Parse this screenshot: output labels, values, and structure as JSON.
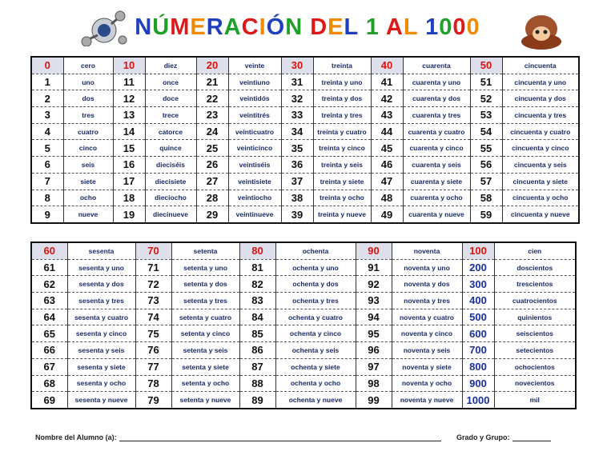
{
  "header": {
    "title": "NÚMERACIÓN DEL 1 AL 1000"
  },
  "tables": [
    {
      "rows": [
        [
          "0",
          "cero",
          "10",
          "diez",
          "20",
          "veinte",
          "30",
          "treinta",
          "40",
          "cuarenta",
          "50",
          "cincuenta"
        ],
        [
          "1",
          "uno",
          "11",
          "once",
          "21",
          "veintiuno",
          "31",
          "treinta y uno",
          "41",
          "cuarenta y uno",
          "51",
          "cincuenta y uno"
        ],
        [
          "2",
          "dos",
          "12",
          "doce",
          "22",
          "veintidós",
          "32",
          "treinta y dos",
          "42",
          "cuarenta y dos",
          "52",
          "cincuenta y dos"
        ],
        [
          "3",
          "tres",
          "13",
          "trece",
          "23",
          "veintitrés",
          "33",
          "treinta y tres",
          "43",
          "cuarenta y tres",
          "53",
          "cincuenta y tres"
        ],
        [
          "4",
          "cuatro",
          "14",
          "catorce",
          "24",
          "veinticuatro",
          "34",
          "treinta y cuatro",
          "44",
          "cuarenta y cuatro",
          "54",
          "cincuenta y cuatro"
        ],
        [
          "5",
          "cinco",
          "15",
          "quince",
          "25",
          "veinticinco",
          "35",
          "treinta y cinco",
          "45",
          "cuarenta y cinco",
          "55",
          "cincuenta y cinco"
        ],
        [
          "6",
          "seis",
          "16",
          "dieciséis",
          "26",
          "veintiséis",
          "36",
          "treinta y seis",
          "46",
          "cuarenta y seis",
          "56",
          "cincuenta y seis"
        ],
        [
          "7",
          "siete",
          "17",
          "diecisiete",
          "27",
          "veintisiete",
          "37",
          "treinta y siete",
          "47",
          "cuarenta y siete",
          "57",
          "cincuenta y siete"
        ],
        [
          "8",
          "ocho",
          "18",
          "dieciocho",
          "28",
          "veintiocho",
          "38",
          "treinta y ocho",
          "48",
          "cuarenta y ocho",
          "58",
          "cincuenta y ocho"
        ],
        [
          "9",
          "nueve",
          "19",
          "diecinueve",
          "29",
          "veintinueve",
          "39",
          "treinta y nueve",
          "49",
          "cuarenta y nueve",
          "59",
          "cincuenta y nueve"
        ]
      ]
    },
    {
      "rows": [
        [
          "60",
          "sesenta",
          "70",
          "setenta",
          "80",
          "ochenta",
          "90",
          "noventa",
          "100",
          "cien"
        ],
        [
          "61",
          "sesenta y uno",
          "71",
          "setenta y uno",
          "81",
          "ochenta y uno",
          "91",
          "noventa y uno",
          "200",
          "doscientos"
        ],
        [
          "62",
          "sesenta y dos",
          "72",
          "setenta y dos",
          "82",
          "ochenta y dos",
          "92",
          "noventa y dos",
          "300",
          "trescientos"
        ],
        [
          "63",
          "sesenta y tres",
          "73",
          "setenta y tres",
          "83",
          "ochenta y tres",
          "93",
          "noventa y tres",
          "400",
          "cuatrocientos"
        ],
        [
          "64",
          "sesenta y cuatro",
          "74",
          "setenta y cuatro",
          "84",
          "ochenta y cuatro",
          "94",
          "noventa y cuatro",
          "500",
          "quinientos"
        ],
        [
          "65",
          "sesenta y cinco",
          "75",
          "setenta y cinco",
          "85",
          "ochenta y cinco",
          "95",
          "noventa y cinco",
          "600",
          "seiscientos"
        ],
        [
          "66",
          "sesenta y seis",
          "76",
          "setenta y seis",
          "86",
          "ochenta y seis",
          "96",
          "noventa y seis",
          "700",
          "setecientos"
        ],
        [
          "67",
          "sesenta y siete",
          "77",
          "setenta y siete",
          "87",
          "ochenta y siete",
          "97",
          "noventa y siete",
          "800",
          "ochocientos"
        ],
        [
          "68",
          "sesenta y ocho",
          "78",
          "setenta y ocho",
          "88",
          "ochenta y ocho",
          "98",
          "noventa y ocho",
          "900",
          "novecientos"
        ],
        [
          "69",
          "sesenta y nueve",
          "79",
          "setenta y nueve",
          "89",
          "ochenta y nueve",
          "99",
          "noventa y nueve",
          "1000",
          "mil"
        ]
      ]
    }
  ],
  "footer": {
    "name_label": "Nombre del Alumno (a):",
    "group_label": "Grado y Grupo:"
  }
}
